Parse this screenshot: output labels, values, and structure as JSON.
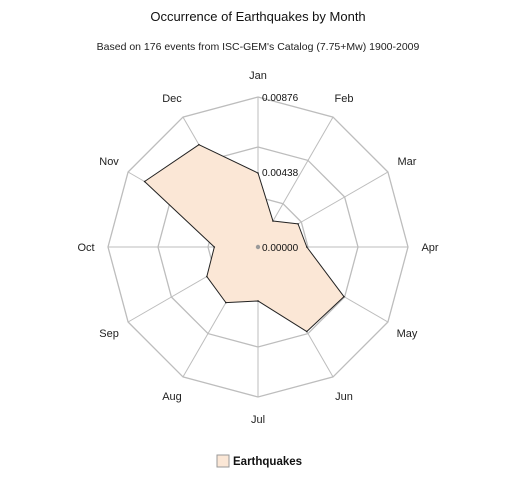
{
  "chart_data": {
    "type": "radar",
    "title": "Occurrence of Earthquakes by Month",
    "subtitle": "Based on 176 events from ISC-GEM's Catalog (7.75+Mw) 1900-2009",
    "categories": [
      "Jan",
      "Feb",
      "Mar",
      "Apr",
      "May",
      "Jun",
      "Jul",
      "Aug",
      "Sep",
      "Oct",
      "Nov",
      "Dec"
    ],
    "series": [
      {
        "name": "Earthquakes",
        "values": [
          0.00432,
          0.00175,
          0.0027,
          0.00285,
          0.0058,
          0.0057,
          0.00315,
          0.00375,
          0.00345,
          0.00255,
          0.00765,
          0.0069
        ],
        "fill": "#fbe7d6",
        "stroke": "#222222"
      }
    ],
    "r_ticks": [
      "0.00000",
      "0.00438",
      "0.00876"
    ],
    "r_range": [
      0,
      0.00876
    ],
    "grid": true,
    "legend": "bottom-center",
    "colors": {
      "grid": "#bdbdbd",
      "background": "#ffffff"
    }
  }
}
